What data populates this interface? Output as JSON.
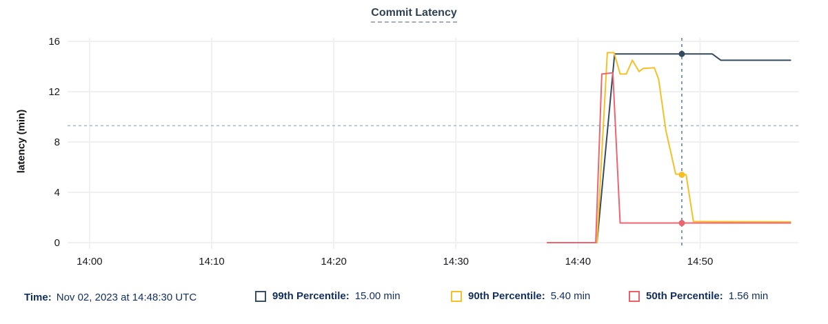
{
  "title": "Commit Latency",
  "footer": {
    "time_label": "Time:",
    "time_value": "Nov 02, 2023 at 14:48:30 UTC",
    "legend": [
      {
        "label": "99th Percentile:",
        "value": "15.00 min",
        "color": "#3a4e61"
      },
      {
        "label": "90th Percentile:",
        "value": "5.40 min",
        "color": "#f5bf25"
      },
      {
        "label": "50th Percentile:",
        "value": "1.56 min",
        "color": "#ec5f68"
      }
    ]
  },
  "chart_data": {
    "type": "line",
    "title": "Commit Latency",
    "xlabel": "",
    "ylabel": "latency (min)",
    "ylim": [
      0,
      16
    ],
    "yticks": [
      0,
      4,
      8,
      12,
      16
    ],
    "x_unit": "minutes after 14:00",
    "xlim": [
      -1.8,
      58.1
    ],
    "xticks": [
      {
        "t": 0,
        "label": "14:00"
      },
      {
        "t": 10,
        "label": "14:10"
      },
      {
        "t": 20,
        "label": "14:20"
      },
      {
        "t": 30,
        "label": "14:30"
      },
      {
        "t": 40,
        "label": "14:40"
      },
      {
        "t": 50,
        "label": "14:50"
      }
    ],
    "grid": true,
    "legend_position": "bottom",
    "grid_color": "#f0f0f0",
    "tick_color": "#17191f",
    "threshold": {
      "value": 9.3,
      "color": "#a7bfca"
    },
    "cursor": {
      "t": 48.5,
      "label": "14:48:30 UTC",
      "color": "#5d7e9b"
    },
    "series": [
      {
        "name": "99th Percentile",
        "color": "#35495d",
        "cursor_value": 15.0,
        "points": [
          [
            37.5,
            0
          ],
          [
            41.55,
            0
          ],
          [
            43.0,
            15.0
          ],
          [
            51.0,
            15.0
          ],
          [
            51.7,
            14.5
          ],
          [
            57.4,
            14.5
          ]
        ]
      },
      {
        "name": "90th Percentile",
        "color": "#f5bf25",
        "cursor_value": 5.4,
        "points": [
          [
            37.5,
            0
          ],
          [
            41.55,
            0
          ],
          [
            42.4,
            15.1
          ],
          [
            42.95,
            15.1
          ],
          [
            43.45,
            13.4
          ],
          [
            43.95,
            13.4
          ],
          [
            44.45,
            14.5
          ],
          [
            45.0,
            13.6
          ],
          [
            45.35,
            13.85
          ],
          [
            46.25,
            13.9
          ],
          [
            46.6,
            13.0
          ],
          [
            47.2,
            8.9
          ],
          [
            48.0,
            5.45
          ],
          [
            48.85,
            5.4
          ],
          [
            49.45,
            1.68
          ],
          [
            57.4,
            1.65
          ]
        ]
      },
      {
        "name": "50th Percentile",
        "color": "#ed6470",
        "cursor_value": 1.56,
        "points": [
          [
            37.5,
            0
          ],
          [
            41.45,
            0
          ],
          [
            41.95,
            13.4
          ],
          [
            42.85,
            13.5
          ],
          [
            43.45,
            1.56
          ],
          [
            57.4,
            1.56
          ]
        ]
      }
    ]
  }
}
